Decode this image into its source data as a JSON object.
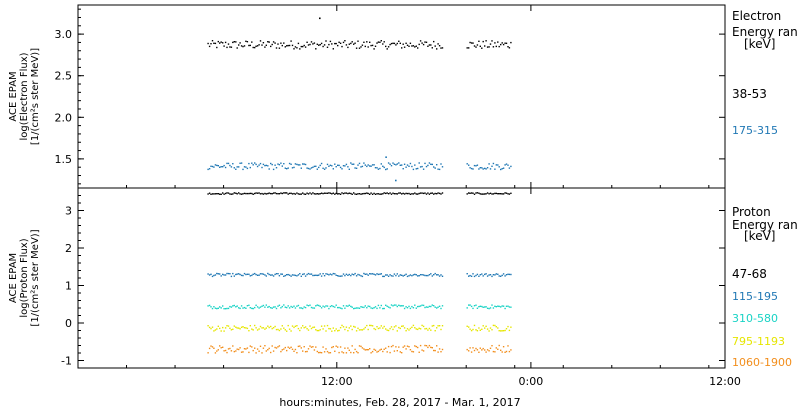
{
  "chart_data": [
    {
      "type": "scatter",
      "panel": "electron",
      "ylabel": [
        "ACE EPAM",
        "log(Electron Flux)",
        "[1/(cm²s ster MeV)]"
      ],
      "ylim": [
        1.15,
        3.35
      ],
      "yticks": [
        "1.5",
        "2.0",
        "2.5",
        "3.0"
      ],
      "ytick_values": [
        1.5,
        2.0,
        2.5,
        3.0
      ],
      "legend": {
        "title_lines": [
          "Electron",
          "Energy ran",
          "[keV]"
        ]
      },
      "series": [
        {
          "name": "38-53",
          "color": "#000000",
          "mean": 2.88,
          "spread": 0.05,
          "outliers": [
            [
              10.9,
              3.2
            ]
          ]
        },
        {
          "name": "175-315",
          "color": "#1f77b4",
          "mean": 1.42,
          "spread": 0.04,
          "outliers": [
            [
              15.0,
              1.53
            ],
            [
              15.6,
              1.25
            ]
          ]
        }
      ],
      "data_gaps_hours": [
        [
          18.5,
          20.0
        ]
      ],
      "x_data_range_hours": [
        4.0,
        22.8
      ]
    },
    {
      "type": "scatter",
      "panel": "proton",
      "ylabel": [
        "ACE EPAM",
        "log(Proton Flux)",
        "[1/(cm²s ster MeV)]"
      ],
      "ylim": [
        -1.2,
        3.6
      ],
      "yticks": [
        "-1",
        "0",
        "1",
        "2",
        "3"
      ],
      "ytick_values": [
        -1,
        0,
        1,
        2,
        3
      ],
      "legend": {
        "title_lines": [
          "Proton",
          "Energy ran",
          "[keV]"
        ]
      },
      "series": [
        {
          "name": "47-68",
          "color": "#000000",
          "mean": 3.47,
          "spread": 0.02
        },
        {
          "name": "115-195",
          "color": "#1f77b4",
          "mean": 1.3,
          "spread": 0.04
        },
        {
          "name": "310-580",
          "color": "#19d3c5",
          "mean": 0.45,
          "spread": 0.05
        },
        {
          "name": "795-1193",
          "color": "#e6e600",
          "mean": -0.12,
          "spread": 0.08
        },
        {
          "name": "1060-1900",
          "color": "#f28e1c",
          "mean": -0.68,
          "spread": 0.1
        }
      ],
      "data_gaps_hours": [
        [
          18.5,
          20.0
        ]
      ],
      "x_data_range_hours": [
        4.0,
        22.8
      ]
    }
  ],
  "x_axis": {
    "range_hours": [
      -4.0,
      36.0
    ],
    "tick_hours": [
      12,
      24,
      36
    ],
    "tick_labels": [
      "12:00",
      "0:00",
      "12:00"
    ],
    "xlabel": "hours:minutes, Feb. 28, 2017 - Mar.  1, 2017"
  }
}
